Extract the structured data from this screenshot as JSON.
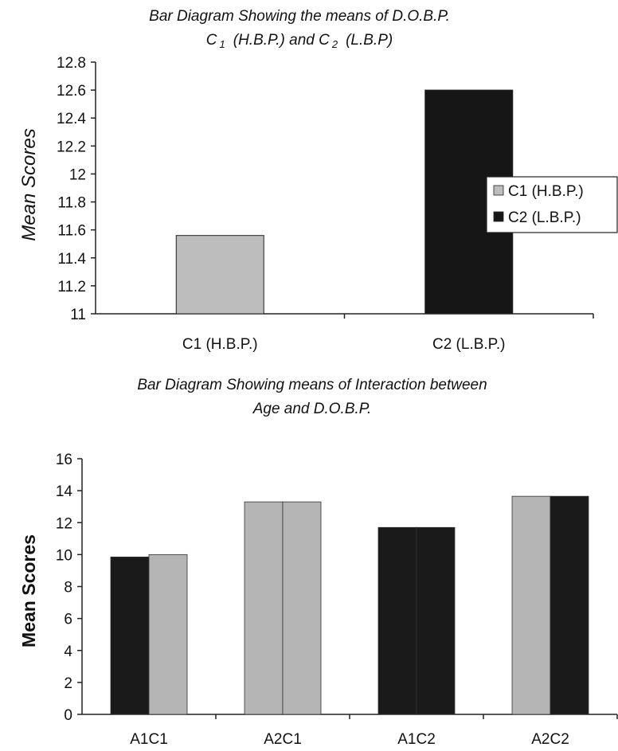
{
  "chart_data": [
    {
      "type": "bar",
      "title_line1": "Bar Diagram Showing the means of D.O.B.P.",
      "title_line2_parts": [
        "C",
        "1",
        "(H.B.P.) and C",
        "2",
        "(L.B.P)"
      ],
      "ylabel": "Mean Scores",
      "xlabel": "",
      "ylim": [
        11,
        12.8
      ],
      "yticks": [
        "11",
        "11.2",
        "11.4",
        "11.6",
        "11.8",
        "12",
        "12.2",
        "12.4",
        "12.6",
        "12.8"
      ],
      "categories": [
        "C1 (H.B.P.)",
        "C2 (L.B.P.)"
      ],
      "values": [
        11.56,
        12.6
      ],
      "colors": [
        "#bdbdbd",
        "#161616"
      ],
      "legend": [
        "C1 (H.B.P.)",
        "C2 (L.B.P.)"
      ],
      "legend_position": "right",
      "grid": false
    },
    {
      "type": "bar",
      "title_line1": "Bar Diagram Showing means of Interaction between",
      "title_line2": "Age and D.O.B.P.",
      "ylabel": "Mean Scores",
      "xlabel": "",
      "ylim": [
        0,
        16
      ],
      "yticks": [
        "0",
        "2",
        "4",
        "6",
        "8",
        "10",
        "12",
        "14",
        "16"
      ],
      "categories": [
        "A1C1",
        "A2C1",
        "A1C2",
        "A2C2"
      ],
      "series": [
        {
          "values": [
            9.85,
            13.3,
            11.7,
            13.65
          ],
          "colors": [
            "#1a1a1a",
            "#b5b5b5",
            "#1a1a1a",
            "#b5b5b5"
          ]
        },
        {
          "values": [
            10.0,
            13.3,
            11.7,
            13.65
          ],
          "colors": [
            "#b5b5b5",
            "#b5b5b5",
            "#1a1a1a",
            "#1a1a1a"
          ]
        }
      ],
      "grid": false
    }
  ]
}
